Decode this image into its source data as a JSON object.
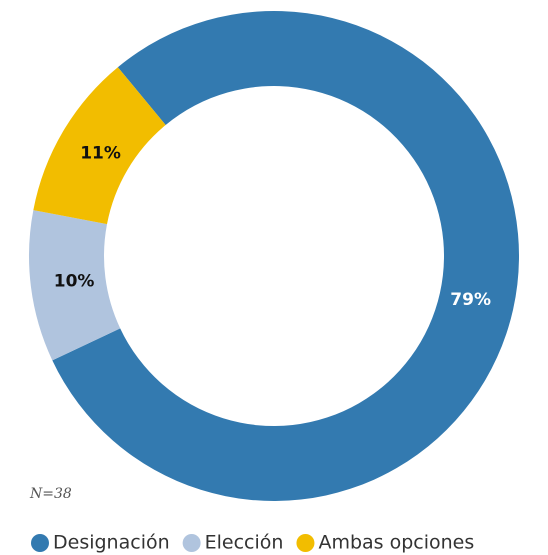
{
  "chart_data": {
    "type": "donut",
    "categories": [
      "Designación",
      "Elección",
      "Ambas opciones"
    ],
    "values": [
      79,
      10,
      11
    ],
    "value_labels": [
      "79%",
      "10%",
      "11%"
    ],
    "colors": [
      "#337ab0",
      "#b0c4de",
      "#f2bd00"
    ],
    "annotation": "N=38",
    "legend": "bottom"
  }
}
